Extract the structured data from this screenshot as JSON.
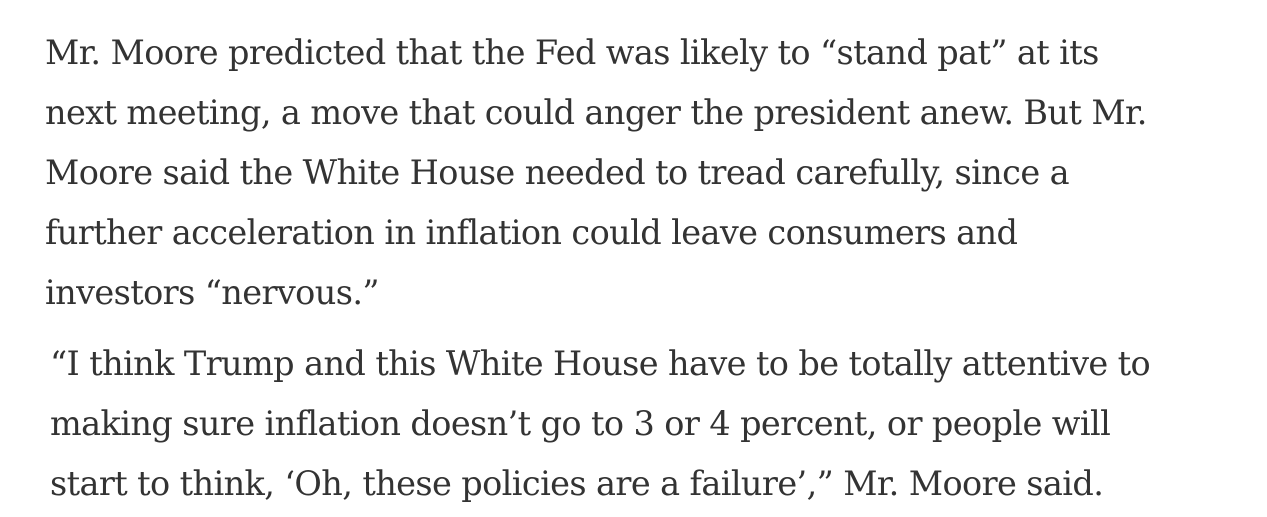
{
  "article": {
    "paragraphs": [
      {
        "lines": [
          "Mr. Moore predicted that the Fed was likely to “stand pat” at its",
          "next meeting, a move that could anger the president anew. But Mr.",
          "Moore said the White House needed to tread carefully, since a",
          "further acceleration in inflation could leave consumers and",
          "investors “nervous.”"
        ]
      },
      {
        "lines": [
          "“I think Trump and this White House have to be totally attentive to",
          "making sure inflation doesn’t go to 3 or 4 percent, or people will",
          "start to think, ‘Oh, these policies are a failure’,” Mr. Moore said."
        ]
      }
    ]
  }
}
